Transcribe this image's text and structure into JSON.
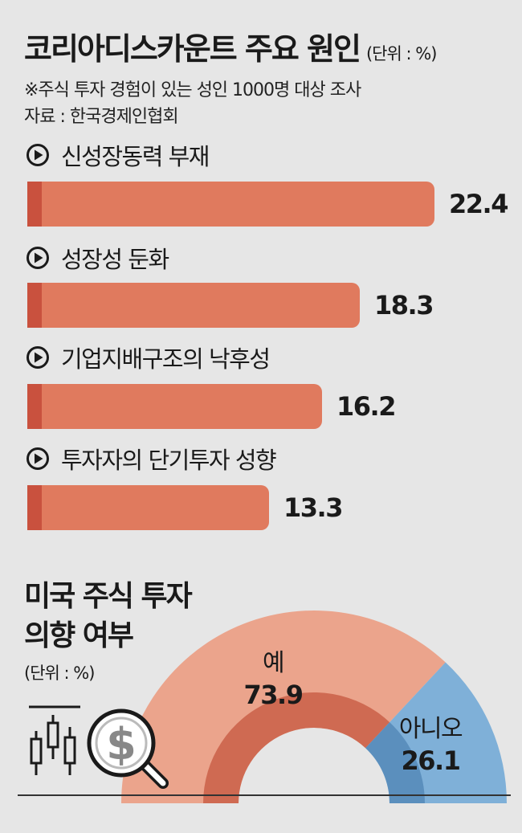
{
  "title": "코리아디스카운트 주요 원인",
  "title_unit": "(단위 : %)",
  "note": "※주식 투자 경험이 있는 성인 1000명 대상 조사",
  "source": "자료 : 한국경제인협회",
  "section2_title_line1": "미국 주식 투자",
  "section2_title_line2": "의향 여부",
  "section2_unit": "(단위 : %)",
  "colors": {
    "background": "#e6e6e6",
    "bar": "#e07a5e",
    "bar_accent": "#c9513e",
    "yes": "#eba48c",
    "yes_inner": "#cf6a52",
    "no": "#7fb0d8",
    "no_inner": "#5b8fbd"
  },
  "icons": [
    "play-circle-icon",
    "candlestick-icon",
    "magnifier-dollar-icon"
  ],
  "chart_data": [
    {
      "type": "bar",
      "orientation": "horizontal",
      "title": "코리아디스카운트 주요 원인",
      "unit": "%",
      "categories": [
        "신성장동력 부재",
        "성장성 둔화",
        "기업지배구조의 낙후성",
        "투자자의 단기투자 성향"
      ],
      "values": [
        22.4,
        18.3,
        16.2,
        13.3
      ],
      "value_labels": [
        "22.4",
        "18.3",
        "16.2",
        "13.3"
      ],
      "xlim": [
        0,
        25
      ],
      "grid": false,
      "legend": "none"
    },
    {
      "type": "pie",
      "style": "half-donut",
      "title": "미국 주식 투자 의향 여부",
      "unit": "%",
      "categories": [
        "예",
        "아니오"
      ],
      "values": [
        73.9,
        26.1
      ],
      "value_labels": [
        "73.9",
        "26.1"
      ],
      "legend": "none"
    }
  ]
}
